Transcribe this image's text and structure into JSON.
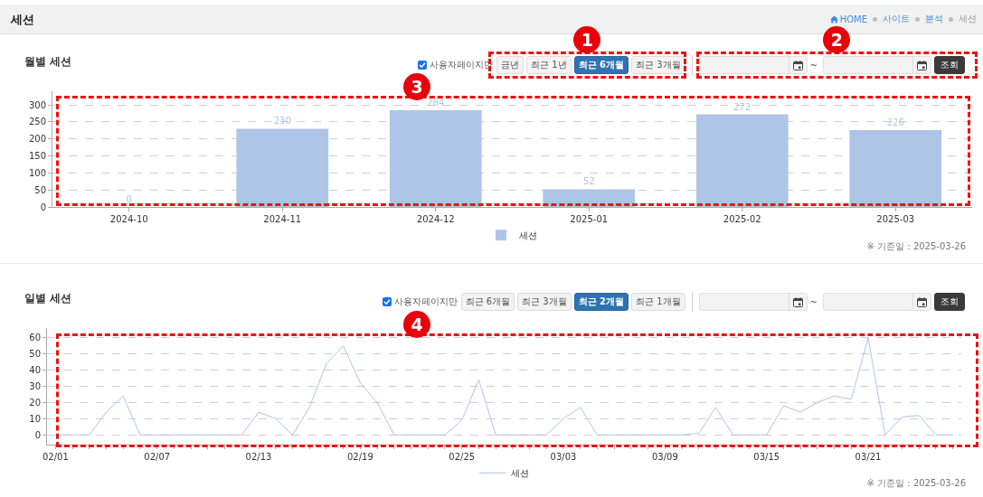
{
  "chart_data": [
    {
      "type": "other",
      "title": "세션",
      "annotations": [
        "HOME",
        "사이트",
        "분석",
        "세션"
      ]
    },
    {
      "type": "bar",
      "title": "월별 세션",
      "categories": [
        "2024-10",
        "2024-11",
        "2024-12",
        "2025-01",
        "2025-02",
        "2025-03"
      ],
      "series": [
        {
          "name": "세션",
          "color": "#aec5e8",
          "values": [
            0,
            230,
            284,
            52,
            272,
            226
          ]
        }
      ],
      "ylim": [
        0,
        340
      ],
      "yticks": [
        0,
        50,
        100,
        150,
        200,
        250,
        300
      ],
      "grid": "y",
      "legend": "bottom",
      "data_labels": true,
      "annotations": [
        "사용자페이지만",
        "금년",
        "최근 1년",
        "최근 6개월",
        "최근 3개월",
        "~",
        "조회",
        "※ 기준일 : 2025-03-26",
        "1",
        "2",
        "3"
      ]
    },
    {
      "type": "line",
      "title": "일별 세션",
      "x": [
        "2025-02-01",
        "2025-02-02",
        "2025-02-03",
        "2025-02-04",
        "2025-02-05",
        "2025-02-06",
        "2025-02-07",
        "2025-02-08",
        "2025-02-09",
        "2025-02-10",
        "2025-02-11",
        "2025-02-12",
        "2025-02-13",
        "2025-02-14",
        "2025-02-15",
        "2025-02-16",
        "2025-02-17",
        "2025-02-18",
        "2025-02-19",
        "2025-02-20",
        "2025-02-21",
        "2025-02-22",
        "2025-02-23",
        "2025-02-24",
        "2025-02-25",
        "2025-02-26",
        "2025-02-27",
        "2025-02-28",
        "2025-03-01",
        "2025-03-02",
        "2025-03-03",
        "2025-03-04",
        "2025-03-05",
        "2025-03-06",
        "2025-03-07",
        "2025-03-08",
        "2025-03-09",
        "2025-03-10",
        "2025-03-11",
        "2025-03-12",
        "2025-03-13",
        "2025-03-14",
        "2025-03-15",
        "2025-03-16",
        "2025-03-17",
        "2025-03-18",
        "2025-03-19",
        "2025-03-20",
        "2025-03-21",
        "2025-03-22",
        "2025-03-23",
        "2025-03-24",
        "2025-03-25",
        "2025-03-26"
      ],
      "series": [
        {
          "name": "세션",
          "color": "#aec5e8",
          "values": [
            0,
            0,
            0,
            14,
            24,
            0,
            0,
            0,
            0,
            0,
            0,
            0,
            14,
            10,
            0,
            17,
            44,
            55,
            32,
            20,
            0,
            0,
            0,
            0,
            9,
            34,
            0,
            0,
            0,
            0,
            10,
            17,
            0,
            0,
            0,
            0,
            0,
            0,
            1,
            17,
            0,
            0,
            0,
            18,
            14,
            20,
            24,
            22,
            60,
            0,
            11,
            12,
            0,
            0
          ]
        }
      ],
      "xlim": [
        "2025-01-31T12:00",
        "2025-03-26T12:00"
      ],
      "xticks": [
        {
          "value": "2025-02-01",
          "label": "02/01"
        },
        {
          "value": "2025-02-02",
          "label": null
        },
        {
          "value": "2025-02-03",
          "label": null
        },
        {
          "value": "2025-02-04",
          "label": null
        },
        {
          "value": "2025-02-05",
          "label": null
        },
        {
          "value": "2025-02-06",
          "label": null
        },
        {
          "value": "2025-02-07",
          "label": "02/07"
        },
        {
          "value": "2025-02-08",
          "label": null
        },
        {
          "value": "2025-02-09",
          "label": null
        },
        {
          "value": "2025-02-10",
          "label": null
        },
        {
          "value": "2025-02-11",
          "label": null
        },
        {
          "value": "2025-02-12",
          "label": null
        },
        {
          "value": "2025-02-13",
          "label": "02/13"
        },
        {
          "value": "2025-02-14",
          "label": null
        },
        {
          "value": "2025-02-15",
          "label": null
        },
        {
          "value": "2025-02-16",
          "label": null
        },
        {
          "value": "2025-02-17",
          "label": null
        },
        {
          "value": "2025-02-18",
          "label": null
        },
        {
          "value": "2025-02-19",
          "label": "02/19"
        },
        {
          "value": "2025-02-20",
          "label": null
        },
        {
          "value": "2025-02-21",
          "label": null
        },
        {
          "value": "2025-02-22",
          "label": null
        },
        {
          "value": "2025-02-23",
          "label": null
        },
        {
          "value": "2025-02-24",
          "label": null
        },
        {
          "value": "2025-02-25",
          "label": "02/25"
        },
        {
          "value": "2025-02-26",
          "label": null
        },
        {
          "value": "2025-02-27",
          "label": null
        },
        {
          "value": "2025-02-28",
          "label": null
        },
        {
          "value": "2025-03-01",
          "label": null
        },
        {
          "value": "2025-03-02",
          "label": null
        },
        {
          "value": "2025-03-03",
          "label": "03/03"
        },
        {
          "value": "2025-03-04",
          "label": null
        },
        {
          "value": "2025-03-05",
          "label": null
        },
        {
          "value": "2025-03-06",
          "label": null
        },
        {
          "value": "2025-03-07",
          "label": null
        },
        {
          "value": "2025-03-08",
          "label": null
        },
        {
          "value": "2025-03-09",
          "label": "03/09"
        },
        {
          "value": "2025-03-10",
          "label": null
        },
        {
          "value": "2025-03-11",
          "label": null
        },
        {
          "value": "2025-03-12",
          "label": null
        },
        {
          "value": "2025-03-13",
          "label": null
        },
        {
          "value": "2025-03-14",
          "label": null
        },
        {
          "value": "2025-03-15",
          "label": "03/15"
        },
        {
          "value": "2025-03-16",
          "label": null
        },
        {
          "value": "2025-03-17",
          "label": null
        },
        {
          "value": "2025-03-18",
          "label": null
        },
        {
          "value": "2025-03-19",
          "label": null
        },
        {
          "value": "2025-03-20",
          "label": null
        },
        {
          "value": "2025-03-21",
          "label": "03/21"
        },
        {
          "value": "2025-03-22",
          "label": null
        },
        {
          "value": "2025-03-23",
          "label": null
        },
        {
          "value": "2025-03-24",
          "label": null
        },
        {
          "value": "2025-03-25",
          "label": null
        },
        {
          "value": "2025-03-26",
          "label": null
        }
      ],
      "ylim": [
        -6,
        66
      ],
      "yticks": [
        0,
        10,
        20,
        30,
        40,
        50,
        60
      ],
      "grid": "y",
      "legend": "bottom",
      "annotations": [
        "사용자페이지만",
        "최근 6개월",
        "최근 3개월",
        "최근 2개월",
        "최근 1개월",
        "~",
        "조회",
        "※ 기준일 : 2025-03-26",
        "4"
      ]
    }
  ]
}
